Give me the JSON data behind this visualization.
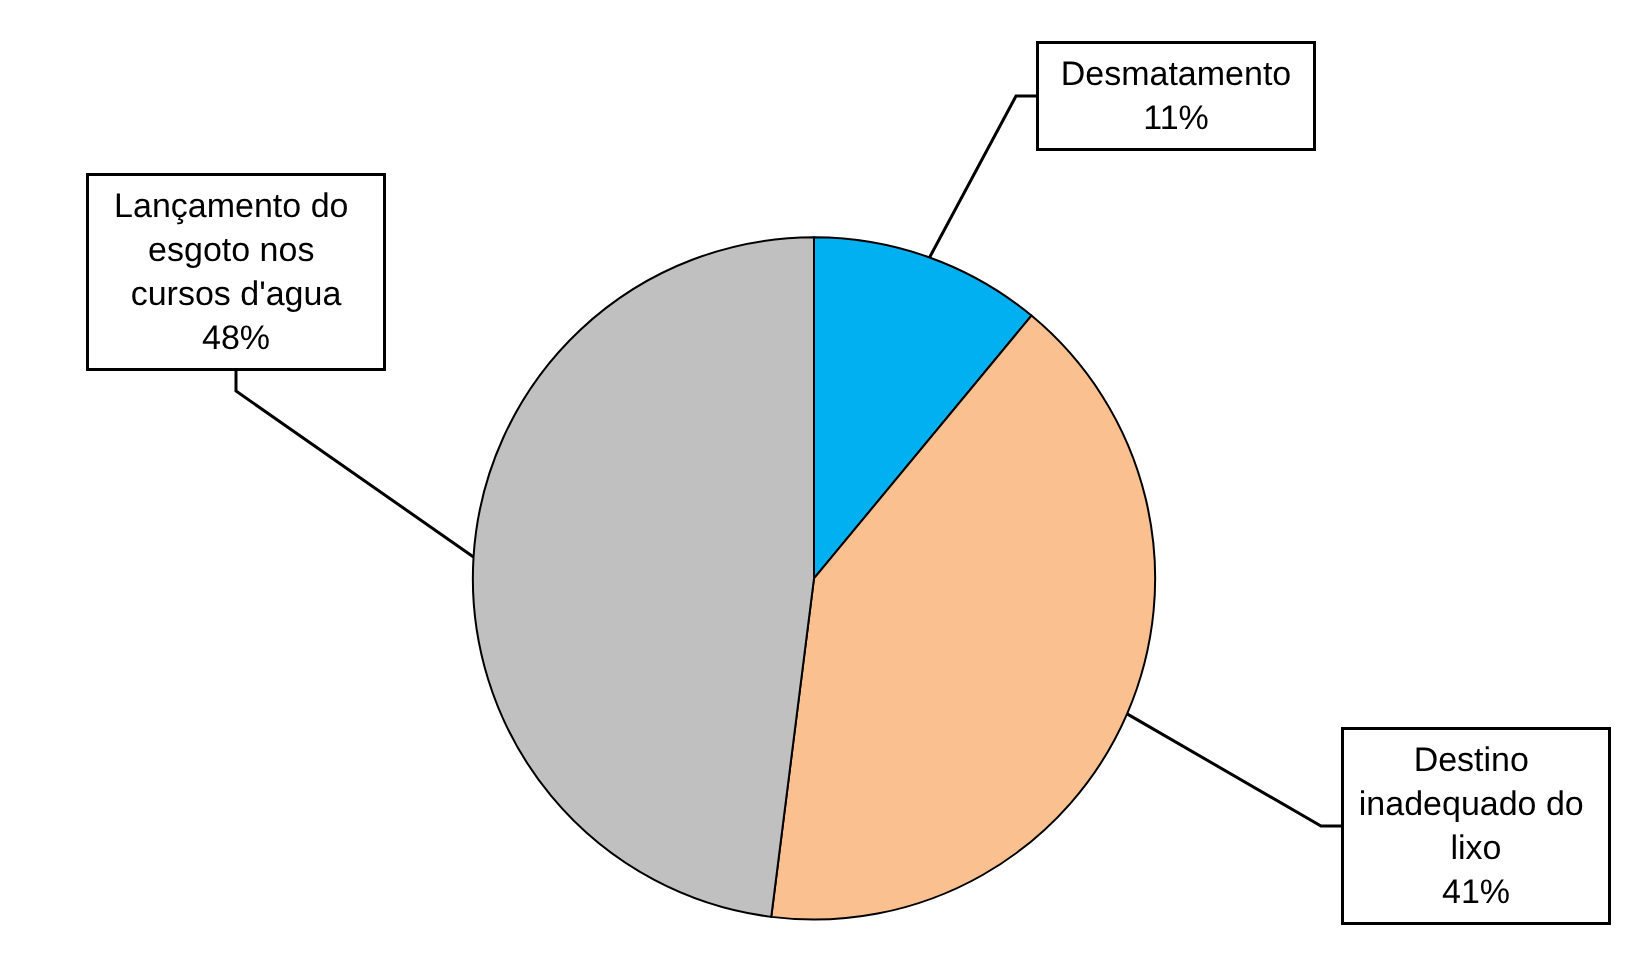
{
  "chart_data": {
    "type": "pie",
    "categories": [
      "Desmatamento",
      "Destino inadequado do lixo",
      "Lançamento do esgoto nos cursos d'agua"
    ],
    "values": [
      11,
      41,
      48
    ],
    "colors": [
      "#00b0f0",
      "#fac08f",
      "#c0c0c0"
    ],
    "value_labels": [
      "11%",
      "41%",
      "48%"
    ],
    "legend": false
  }
}
